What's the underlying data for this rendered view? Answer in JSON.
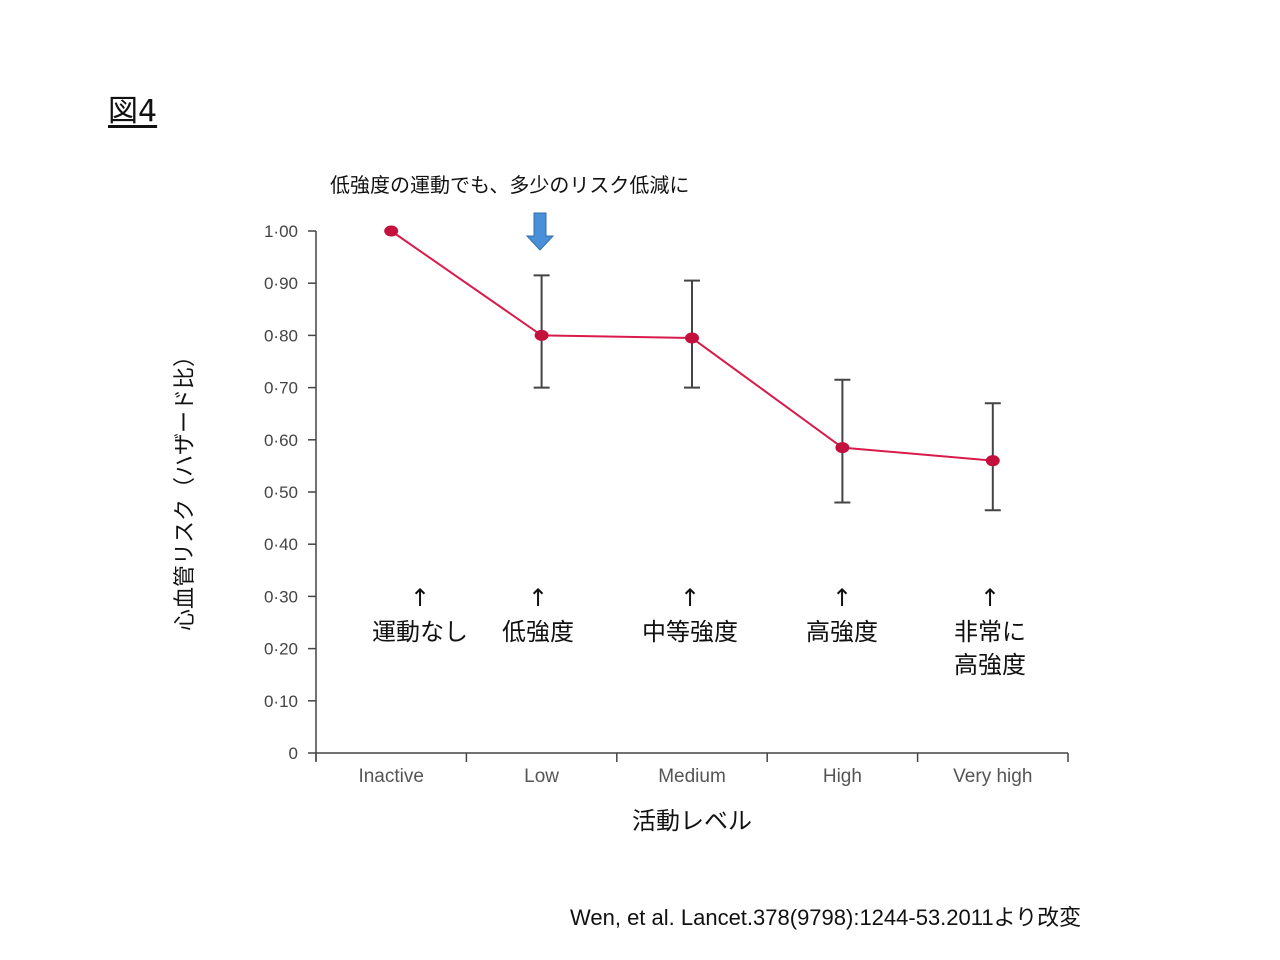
{
  "figure_label": "図4",
  "citation": "Wen, et al. Lancet.378(9798):1244-53.2011より改変",
  "chart_data": {
    "type": "line",
    "categories": [
      "Inactive",
      "Low",
      "Medium",
      "High",
      "Very high"
    ],
    "values": [
      1.0,
      0.8,
      0.795,
      0.585,
      0.56
    ],
    "error_low": [
      null,
      0.7,
      0.7,
      0.48,
      0.465
    ],
    "error_high": [
      null,
      0.915,
      0.905,
      0.715,
      0.67
    ],
    "ylabel": "心血管リスク（ハザード比）",
    "xlabel": "活動レベル",
    "ylim": [
      0,
      1.0
    ],
    "yticks": [
      0,
      0.1,
      0.2,
      0.3,
      0.4,
      0.5,
      0.6,
      0.7,
      0.8,
      0.9,
      1.0
    ],
    "ytick_labels": [
      "0",
      "0·10",
      "0·20",
      "0·30",
      "0·40",
      "0·50",
      "0·60",
      "0·70",
      "0·80",
      "0·90",
      "1·00"
    ],
    "line_color": "#d81b4a",
    "marker_color": "#c4103c",
    "errorbar_color": "#444444",
    "highlight_arrow_color": "#4a90d9",
    "annotation_top": "低強度の運動でも、多少のリスク低減に",
    "intensity_labels": [
      [
        "運動なし"
      ],
      [
        "低強度"
      ],
      [
        "中等強度"
      ],
      [
        "高強度"
      ],
      [
        "非常に",
        "高強度"
      ]
    ],
    "arrow_glyph": "↑"
  }
}
